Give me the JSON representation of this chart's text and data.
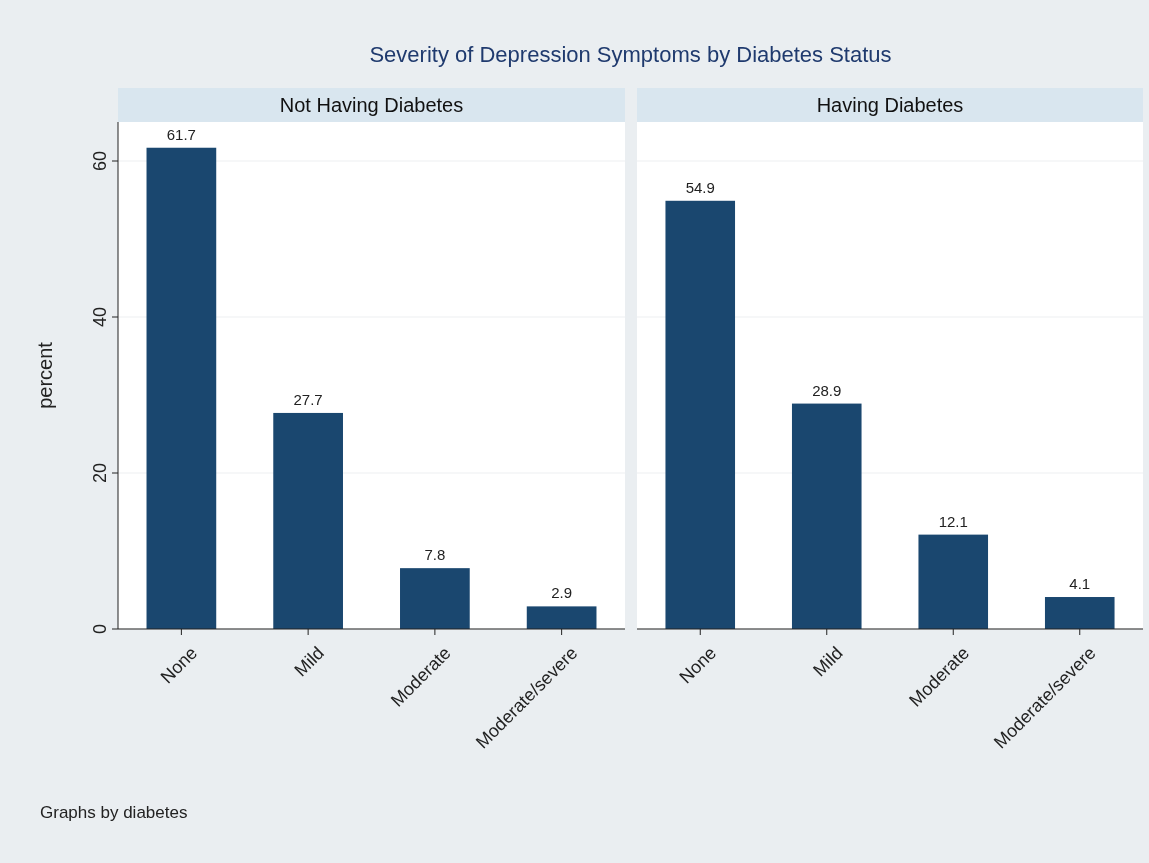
{
  "chart_data": [
    {
      "type": "bar",
      "title": "Not Having Diabetes",
      "ylabel": "percent",
      "categories": [
        "None",
        "Mild",
        "Moderate",
        "Moderate/severe"
      ],
      "values": [
        61.7,
        27.7,
        7.8,
        2.9
      ],
      "color": "#1a476f",
      "ylim": [
        0,
        65
      ],
      "yticks": [
        0,
        20,
        40,
        60
      ],
      "grid": "y",
      "data_labels": true,
      "annotations": [
        "Severity of Depression Symptoms by Diabetes Status",
        "Graphs by diabetes"
      ]
    },
    {
      "type": "bar",
      "title": "Having Diabetes",
      "categories": [
        "None",
        "Mild",
        "Moderate",
        "Moderate/severe"
      ],
      "values": [
        54.9,
        28.9,
        12.1,
        4.1
      ],
      "color": "#1a476f",
      "ylim": [
        0,
        65
      ],
      "yticks": [
        0,
        20,
        40,
        60
      ],
      "grid": "y",
      "data_labels": true,
      "tick_labels": "x"
    }
  ]
}
